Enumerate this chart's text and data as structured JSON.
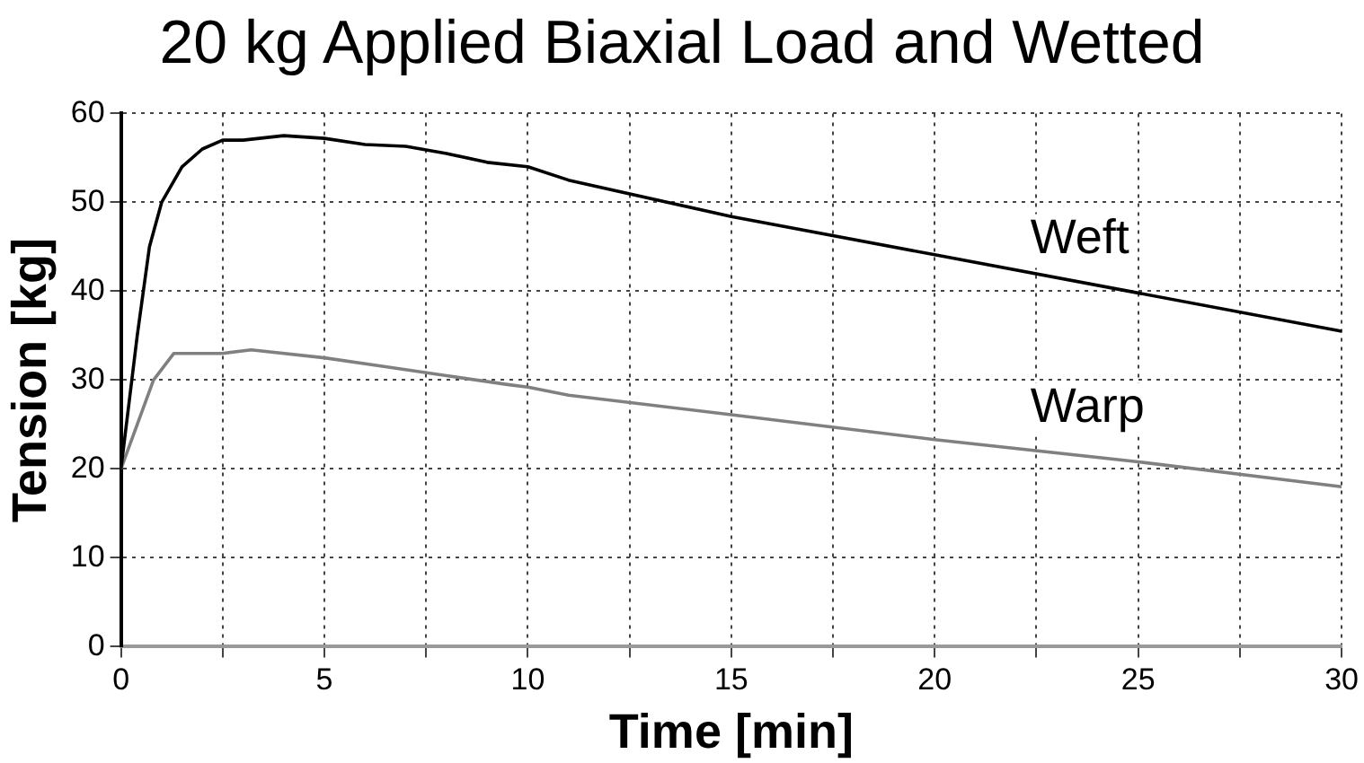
{
  "chart_data": {
    "type": "line",
    "title": "20 kg Applied Biaxial Load and Wetted",
    "xlabel": "Time [min]",
    "ylabel": "Tension [kg]",
    "series": [
      {
        "name": "Weft",
        "color": "#000000",
        "x": [
          0,
          0.4,
          0.7,
          1,
          1.5,
          2,
          2.5,
          3,
          4,
          5,
          6,
          7,
          8,
          9,
          10,
          11,
          15,
          20,
          25,
          30
        ],
        "values": [
          20,
          35,
          45,
          50,
          54,
          56,
          57,
          57,
          57.5,
          57.2,
          56.5,
          56.3,
          55.5,
          54.5,
          54,
          52.5,
          48.4,
          44.1,
          39.8,
          35.5
        ]
      },
      {
        "name": "Warp",
        "color": "#808080",
        "x": [
          0,
          0.4,
          0.8,
          1.3,
          2.5,
          3.2,
          5,
          6.5,
          8,
          9.5,
          10,
          11,
          15,
          20,
          25,
          30
        ],
        "values": [
          20,
          25,
          30,
          33,
          33,
          33.4,
          32.5,
          31.5,
          30.5,
          29.5,
          29.2,
          28.3,
          26.1,
          23.3,
          20.8,
          18
        ]
      }
    ],
    "xlim": [
      0,
      30
    ],
    "xticks": [
      0,
      {
        "value": 2.5,
        "label": null
      },
      5,
      {
        "value": 7.5,
        "label": null
      },
      10,
      {
        "value": 12.5,
        "label": null
      },
      15,
      {
        "value": 17.5,
        "label": null
      },
      20,
      {
        "value": 22.5,
        "label": null
      },
      25,
      {
        "value": 27.5,
        "label": null
      },
      30
    ],
    "ylim": [
      0,
      60
    ],
    "yticks": [
      0,
      10,
      20,
      30,
      40,
      50,
      60
    ],
    "grid": true,
    "marker": "none",
    "line_style": "solid",
    "legend": false
  }
}
